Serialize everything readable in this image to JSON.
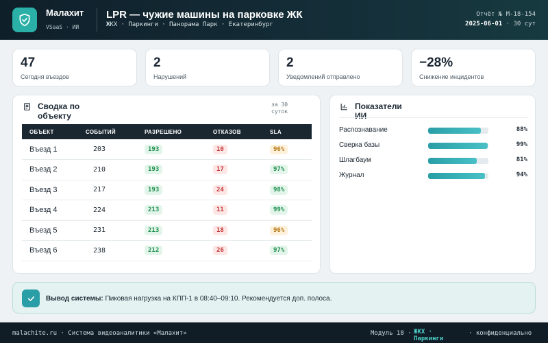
{
  "header": {
    "brand": "Малахит",
    "brand_sub": "VSaaS · ИИ",
    "title": "LPR — чужие машины на парковке ЖК",
    "breadcrumbs": "ЖКХ · Паркинги · Панорама Парк · Екатеринбург",
    "report_id": "Отчёт № M-18-154",
    "date": "2025-06-01",
    "period": "· 30 сут"
  },
  "kpis": [
    {
      "value": "47",
      "label": "Сегодня въездов"
    },
    {
      "value": "2",
      "label": "Нарушений"
    },
    {
      "value": "2",
      "label": "Уведомлений отправлено"
    },
    {
      "value": "−28%",
      "label": "Снижение инцидентов"
    }
  ],
  "summary": {
    "title": "Сводка по объекту",
    "period": "за 30 суток",
    "columns": [
      "ОБЪЕКТ",
      "СОБЫТИЙ",
      "РАЗРЕШЕНО",
      "ОТКАЗОВ",
      "SLA"
    ],
    "rows": [
      {
        "object": "Въезд 1",
        "events": "203",
        "allowed": "193",
        "denied": "10",
        "sla": "96%",
        "sla_status": "warn"
      },
      {
        "object": "Въезд 2",
        "events": "210",
        "allowed": "193",
        "denied": "17",
        "sla": "97%",
        "sla_status": "ok"
      },
      {
        "object": "Въезд 3",
        "events": "217",
        "allowed": "193",
        "denied": "24",
        "sla": "98%",
        "sla_status": "ok"
      },
      {
        "object": "Въезд 4",
        "events": "224",
        "allowed": "213",
        "denied": "11",
        "sla": "99%",
        "sla_status": "ok"
      },
      {
        "object": "Въезд 5",
        "events": "231",
        "allowed": "213",
        "denied": "18",
        "sla": "96%",
        "sla_status": "warn"
      },
      {
        "object": "Въезд 6",
        "events": "238",
        "allowed": "212",
        "denied": "26",
        "sla": "97%",
        "sla_status": "ok"
      }
    ]
  },
  "ai": {
    "title": "Показатели ИИ",
    "metrics": [
      {
        "label": "Распознавание",
        "value": 88,
        "display": "88%"
      },
      {
        "label": "Сверка базы",
        "value": 99,
        "display": "99%"
      },
      {
        "label": "Шлагбаум",
        "value": 81,
        "display": "81%"
      },
      {
        "label": "Журнал",
        "value": 94,
        "display": "94%"
      }
    ]
  },
  "conclusion": {
    "label": "Вывод системы:",
    "text": " Пиковая нагрузка на КПП-1 в 08:40–09:10. Рекомендуется доп. полоса."
  },
  "footer": {
    "left": "malachite.ru · Система видеоаналитики «Малахит»",
    "module": "Модуль 18 ·",
    "accent": "ЖКХ · Паркинги",
    "confidential": "· конфиденциально"
  },
  "colors": {
    "accent": "#2a9ea6",
    "ok": "#1f8f4e",
    "bad": "#c73a3a",
    "warn": "#b77a15"
  },
  "icons": {
    "logo": "shield-check-icon",
    "summary": "document-icon",
    "ai": "bar-chart-icon",
    "conclusion": "check-icon"
  }
}
